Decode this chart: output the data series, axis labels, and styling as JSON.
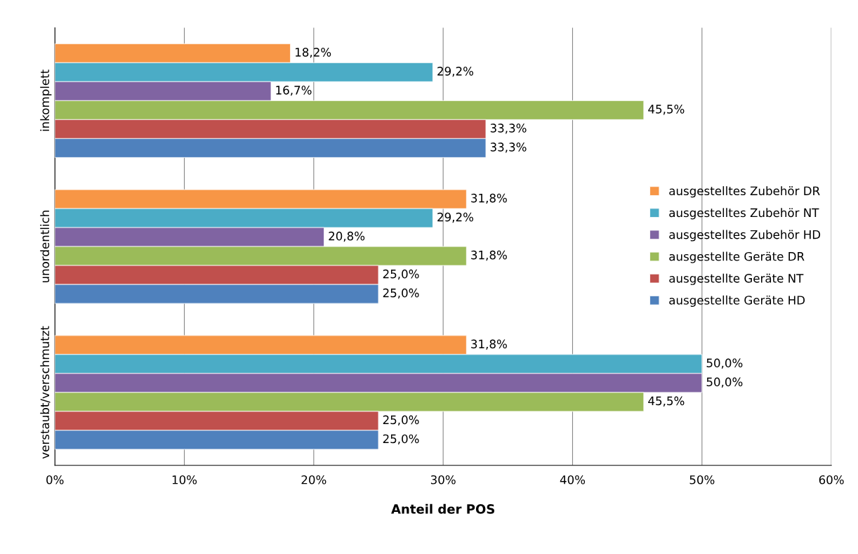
{
  "chart_data": {
    "type": "bar",
    "orientation": "horizontal",
    "xlabel": "Anteil der POS",
    "categories": [
      "inkomplett",
      "unordentlich",
      "verstaubt/verschmutzt"
    ],
    "series": [
      {
        "name": "ausgestelltes Zubehör DR",
        "color": "#f79646",
        "values": [
          18.2,
          31.8,
          31.8
        ],
        "value_labels": [
          "18,2%",
          "31,8%",
          "31,8%"
        ]
      },
      {
        "name": "ausgestelltes Zubehör NT",
        "color": "#4bacc6",
        "values": [
          29.2,
          29.2,
          50.0
        ],
        "value_labels": [
          "29,2%",
          "29,2%",
          "50,0%"
        ]
      },
      {
        "name": "ausgestelltes Zubehör HD",
        "color": "#8064a2",
        "values": [
          16.7,
          20.8,
          50.0
        ],
        "value_labels": [
          "16,7%",
          "20,8%",
          "50,0%"
        ]
      },
      {
        "name": "ausgestellte Geräte DR",
        "color": "#9bbb59",
        "values": [
          45.5,
          31.8,
          45.5
        ],
        "value_labels": [
          "45,5%",
          "31,8%",
          "45,5%"
        ]
      },
      {
        "name": "ausgestellte Geräte NT",
        "color": "#c0504d",
        "values": [
          33.3,
          25.0,
          25.0
        ],
        "value_labels": [
          "33,3%",
          "25,0%",
          "25,0%"
        ]
      },
      {
        "name": "ausgestellte Geräte HD",
        "color": "#4f81bd",
        "values": [
          33.3,
          25.0,
          25.0
        ],
        "value_labels": [
          "33,3%",
          "25,0%",
          "25,0%"
        ]
      }
    ],
    "xlim": [
      0,
      60
    ],
    "xticks": [
      {
        "value": 0,
        "label": "0%"
      },
      {
        "value": 10,
        "label": "10%"
      },
      {
        "value": 20,
        "label": "20%"
      },
      {
        "value": 30,
        "label": "30%"
      },
      {
        "value": 40,
        "label": "40%"
      },
      {
        "value": 50,
        "label": "50%"
      },
      {
        "value": 60,
        "label": "60%"
      }
    ],
    "grid": "x",
    "legend": "right"
  }
}
